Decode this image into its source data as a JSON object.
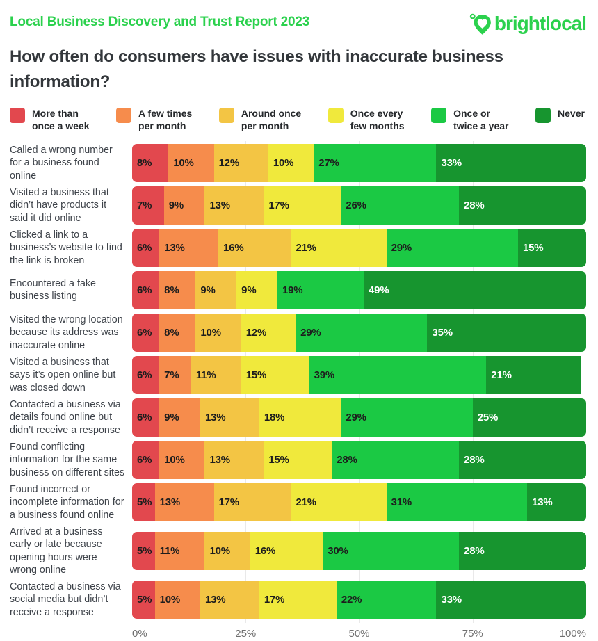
{
  "header": {
    "report_title": "Local Business Discovery and Trust Report 2023",
    "logo_text": "brightlocal",
    "question": "How often do consumers have issues with inaccurate business information?"
  },
  "colors": {
    "brand_green": "#2BD14D",
    "title_text": "#33373B",
    "axis_text": "#6F6F6F",
    "gridline": "#E9E9E9"
  },
  "chart_data": {
    "type": "bar",
    "stacked": true,
    "orientation": "horizontal",
    "unit": "%",
    "xlim": [
      0,
      100
    ],
    "grid": "vertical lines at 25/50/75, visible between bars",
    "legend_position": "top",
    "x_ticks": [
      "0%",
      "25%",
      "50%",
      "75%",
      "100%"
    ],
    "x_tick_values": [
      0,
      25,
      50,
      75,
      100
    ],
    "legend": [
      {
        "label": "More than\nonce a week",
        "name": "More than once a week",
        "color": "#E2484E",
        "value_text_color": "#1D1D1D"
      },
      {
        "label": "A few times\nper month",
        "name": "A few times per month",
        "color": "#F68C4C",
        "value_text_color": "#1D1D1D"
      },
      {
        "label": "Around once\nper month",
        "name": "Around once per month",
        "color": "#F3C544",
        "value_text_color": "#1D1D1D"
      },
      {
        "label": "Once every\nfew months",
        "name": "Once every few months",
        "color": "#F0E93C",
        "value_text_color": "#1D1D1D"
      },
      {
        "label": "Once or\ntwice a year",
        "name": "Once or twice a year",
        "color": "#1BC944",
        "value_text_color": "#1D1D1D"
      },
      {
        "label": "Never",
        "name": "Never",
        "color": "#17952F",
        "value_text_color": "#FFFFFF"
      }
    ],
    "rows": [
      {
        "label": "Called a wrong number for a business found online",
        "values": [
          8,
          10,
          12,
          10,
          27,
          33
        ]
      },
      {
        "label": "Visited a business that didn’t have products it said it did online",
        "values": [
          7,
          9,
          13,
          17,
          26,
          28
        ]
      },
      {
        "label": "Clicked a link to a business’s website to find the link is broken",
        "values": [
          6,
          13,
          16,
          21,
          29,
          15
        ]
      },
      {
        "label": "Encountered a fake business listing",
        "values": [
          6,
          8,
          9,
          9,
          19,
          49
        ]
      },
      {
        "label": "Visited the wrong location because its address was inaccurate online",
        "values": [
          6,
          8,
          10,
          12,
          29,
          35
        ]
      },
      {
        "label": "Visited a business that says it’s open online but was closed down",
        "values": [
          6,
          7,
          11,
          15,
          39,
          21
        ]
      },
      {
        "label": "Contacted a business via details found online but didn’t receive a response",
        "values": [
          6,
          9,
          13,
          18,
          29,
          25
        ]
      },
      {
        "label": "Found conflicting information for the same business on different sites",
        "values": [
          6,
          10,
          13,
          15,
          28,
          28
        ]
      },
      {
        "label": "Found incorrect or incomplete information for a business found online",
        "values": [
          5,
          13,
          17,
          21,
          31,
          13
        ]
      },
      {
        "label": "Arrived at a business early or late because opening hours were wrong online",
        "values": [
          5,
          11,
          10,
          16,
          30,
          28
        ]
      },
      {
        "label": "Contacted a business via social media but didn’t receive a response",
        "values": [
          5,
          10,
          13,
          17,
          22,
          33
        ]
      }
    ]
  }
}
